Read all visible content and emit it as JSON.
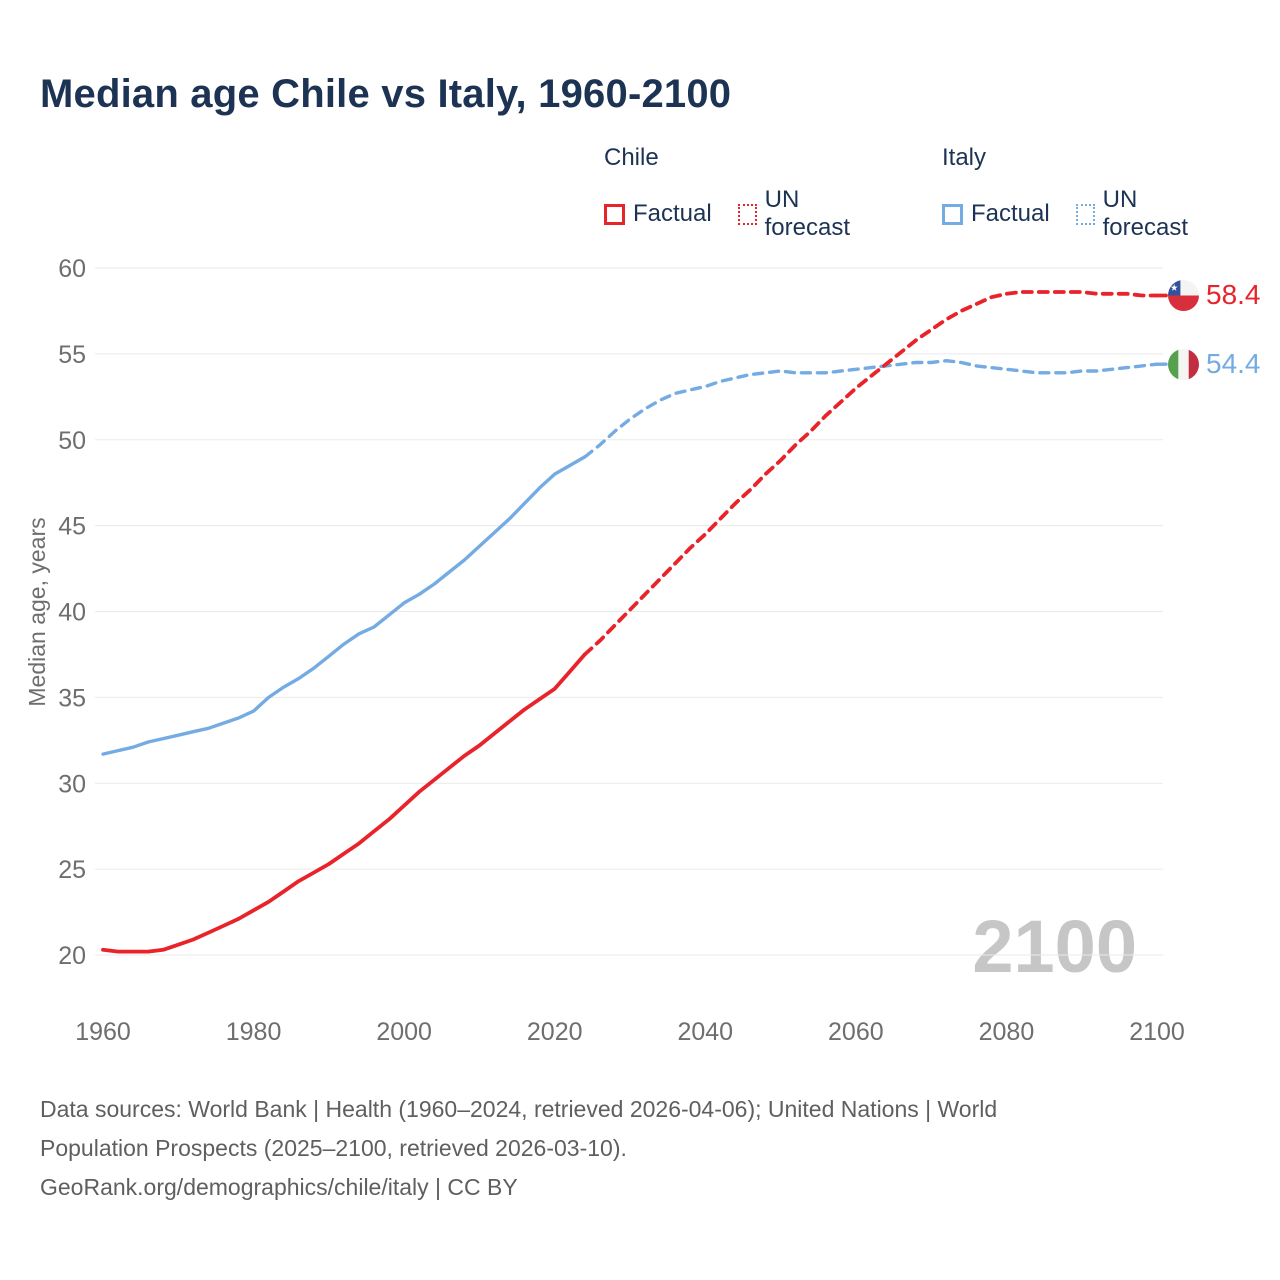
{
  "title": "Median age Chile vs Italy, 1960-2100",
  "legend": {
    "groups": [
      {
        "name": "Chile",
        "color": "#e8232a",
        "items": [
          {
            "label": "Factual",
            "style": "solid"
          },
          {
            "label": "UN forecast",
            "style": "dotted"
          }
        ]
      },
      {
        "name": "Italy",
        "color": "#74abe2",
        "items": [
          {
            "label": "Factual",
            "style": "solid"
          },
          {
            "label": "UN forecast",
            "style": "dotted"
          }
        ]
      }
    ]
  },
  "watermark": "2100",
  "end_labels": [
    {
      "country": "Chile",
      "value": "58.4",
      "numeric": 58.4,
      "color": "#e8232a",
      "flag": "chile-flag"
    },
    {
      "country": "Italy",
      "value": "54.4",
      "numeric": 54.4,
      "color": "#74abe2",
      "flag": "italy-flag"
    }
  ],
  "footer": {
    "lines": [
      "Data sources: World Bank | Health (1960–2024, retrieved 2026-04-06); United Nations | World",
      "Population Prospects (2025–2100, retrieved 2026-03-10).",
      "GeoRank.org/demographics/chile/italy | CC BY"
    ]
  },
  "chart_data": {
    "type": "line",
    "title": "Median age Chile vs Italy, 1960-2100",
    "xlabel": "",
    "ylabel": "Median age, years",
    "xlim": [
      1960,
      2100
    ],
    "ylim": [
      20,
      60
    ],
    "x_ticks": [
      1960,
      1980,
      2000,
      2020,
      2040,
      2060,
      2080,
      2100
    ],
    "y_ticks": [
      20,
      25,
      30,
      35,
      40,
      45,
      50,
      55,
      60
    ],
    "grid": true,
    "legend_position": "top-right",
    "tick_color": "#6e6e6e",
    "grid_color": "#eaeaea",
    "series": [
      {
        "name": "Italy factual",
        "color": "#74abe2",
        "dash": false,
        "width": 3.4,
        "points": [
          [
            1960,
            31.7
          ],
          [
            1962,
            31.9
          ],
          [
            1964,
            32.1
          ],
          [
            1966,
            32.4
          ],
          [
            1968,
            32.6
          ],
          [
            1970,
            32.8
          ],
          [
            1972,
            33.0
          ],
          [
            1974,
            33.2
          ],
          [
            1976,
            33.5
          ],
          [
            1978,
            33.8
          ],
          [
            1980,
            34.2
          ],
          [
            1982,
            35.0
          ],
          [
            1984,
            35.6
          ],
          [
            1986,
            36.1
          ],
          [
            1988,
            36.7
          ],
          [
            1990,
            37.4
          ],
          [
            1992,
            38.1
          ],
          [
            1994,
            38.7
          ],
          [
            1996,
            39.1
          ],
          [
            1998,
            39.8
          ],
          [
            2000,
            40.5
          ],
          [
            2002,
            41.0
          ],
          [
            2004,
            41.6
          ],
          [
            2006,
            42.3
          ],
          [
            2008,
            43.0
          ],
          [
            2010,
            43.8
          ],
          [
            2012,
            44.6
          ],
          [
            2014,
            45.4
          ],
          [
            2016,
            46.3
          ],
          [
            2018,
            47.2
          ],
          [
            2020,
            48.0
          ],
          [
            2022,
            48.5
          ],
          [
            2024,
            49.0
          ]
        ]
      },
      {
        "name": "Italy UN forecast",
        "color": "#74abe2",
        "dash": true,
        "width": 3.4,
        "points": [
          [
            2024,
            49.0
          ],
          [
            2026,
            49.7
          ],
          [
            2028,
            50.5
          ],
          [
            2030,
            51.2
          ],
          [
            2032,
            51.8
          ],
          [
            2034,
            52.3
          ],
          [
            2036,
            52.7
          ],
          [
            2038,
            52.9
          ],
          [
            2040,
            53.1
          ],
          [
            2042,
            53.4
          ],
          [
            2044,
            53.6
          ],
          [
            2046,
            53.8
          ],
          [
            2048,
            53.9
          ],
          [
            2050,
            54.0
          ],
          [
            2052,
            53.9
          ],
          [
            2054,
            53.9
          ],
          [
            2056,
            53.9
          ],
          [
            2058,
            54.0
          ],
          [
            2060,
            54.1
          ],
          [
            2062,
            54.2
          ],
          [
            2064,
            54.3
          ],
          [
            2066,
            54.4
          ],
          [
            2068,
            54.5
          ],
          [
            2070,
            54.5
          ],
          [
            2072,
            54.6
          ],
          [
            2074,
            54.5
          ],
          [
            2076,
            54.3
          ],
          [
            2078,
            54.2
          ],
          [
            2080,
            54.1
          ],
          [
            2082,
            54.0
          ],
          [
            2084,
            53.9
          ],
          [
            2086,
            53.9
          ],
          [
            2088,
            53.9
          ],
          [
            2090,
            54.0
          ],
          [
            2092,
            54.0
          ],
          [
            2094,
            54.1
          ],
          [
            2096,
            54.2
          ],
          [
            2098,
            54.3
          ],
          [
            2100,
            54.4
          ]
        ]
      },
      {
        "name": "Chile factual",
        "color": "#e8232a",
        "dash": false,
        "width": 3.8,
        "points": [
          [
            1960,
            20.3
          ],
          [
            1962,
            20.2
          ],
          [
            1964,
            20.2
          ],
          [
            1966,
            20.2
          ],
          [
            1968,
            20.3
          ],
          [
            1970,
            20.6
          ],
          [
            1972,
            20.9
          ],
          [
            1974,
            21.3
          ],
          [
            1976,
            21.7
          ],
          [
            1978,
            22.1
          ],
          [
            1980,
            22.6
          ],
          [
            1982,
            23.1
          ],
          [
            1984,
            23.7
          ],
          [
            1986,
            24.3
          ],
          [
            1988,
            24.8
          ],
          [
            1990,
            25.3
          ],
          [
            1992,
            25.9
          ],
          [
            1994,
            26.5
          ],
          [
            1996,
            27.2
          ],
          [
            1998,
            27.9
          ],
          [
            2000,
            28.7
          ],
          [
            2002,
            29.5
          ],
          [
            2004,
            30.2
          ],
          [
            2006,
            30.9
          ],
          [
            2008,
            31.6
          ],
          [
            2010,
            32.2
          ],
          [
            2012,
            32.9
          ],
          [
            2014,
            33.6
          ],
          [
            2016,
            34.3
          ],
          [
            2018,
            34.9
          ],
          [
            2020,
            35.5
          ],
          [
            2022,
            36.5
          ],
          [
            2024,
            37.5
          ]
        ]
      },
      {
        "name": "Chile UN forecast",
        "color": "#e8232a",
        "dash": true,
        "width": 3.8,
        "points": [
          [
            2024,
            37.5
          ],
          [
            2026,
            38.3
          ],
          [
            2028,
            39.2
          ],
          [
            2030,
            40.1
          ],
          [
            2032,
            41.0
          ],
          [
            2034,
            41.9
          ],
          [
            2036,
            42.8
          ],
          [
            2038,
            43.7
          ],
          [
            2040,
            44.5
          ],
          [
            2042,
            45.4
          ],
          [
            2044,
            46.3
          ],
          [
            2046,
            47.1
          ],
          [
            2048,
            48.0
          ],
          [
            2050,
            48.8
          ],
          [
            2052,
            49.7
          ],
          [
            2054,
            50.5
          ],
          [
            2056,
            51.4
          ],
          [
            2058,
            52.2
          ],
          [
            2060,
            53.0
          ],
          [
            2062,
            53.7
          ],
          [
            2064,
            54.4
          ],
          [
            2066,
            55.1
          ],
          [
            2068,
            55.8
          ],
          [
            2070,
            56.4
          ],
          [
            2072,
            57.0
          ],
          [
            2074,
            57.5
          ],
          [
            2076,
            57.9
          ],
          [
            2078,
            58.3
          ],
          [
            2080,
            58.5
          ],
          [
            2082,
            58.6
          ],
          [
            2084,
            58.6
          ],
          [
            2086,
            58.6
          ],
          [
            2088,
            58.6
          ],
          [
            2090,
            58.6
          ],
          [
            2092,
            58.5
          ],
          [
            2094,
            58.5
          ],
          [
            2096,
            58.5
          ],
          [
            2098,
            58.4
          ],
          [
            2100,
            58.4
          ]
        ]
      }
    ]
  }
}
